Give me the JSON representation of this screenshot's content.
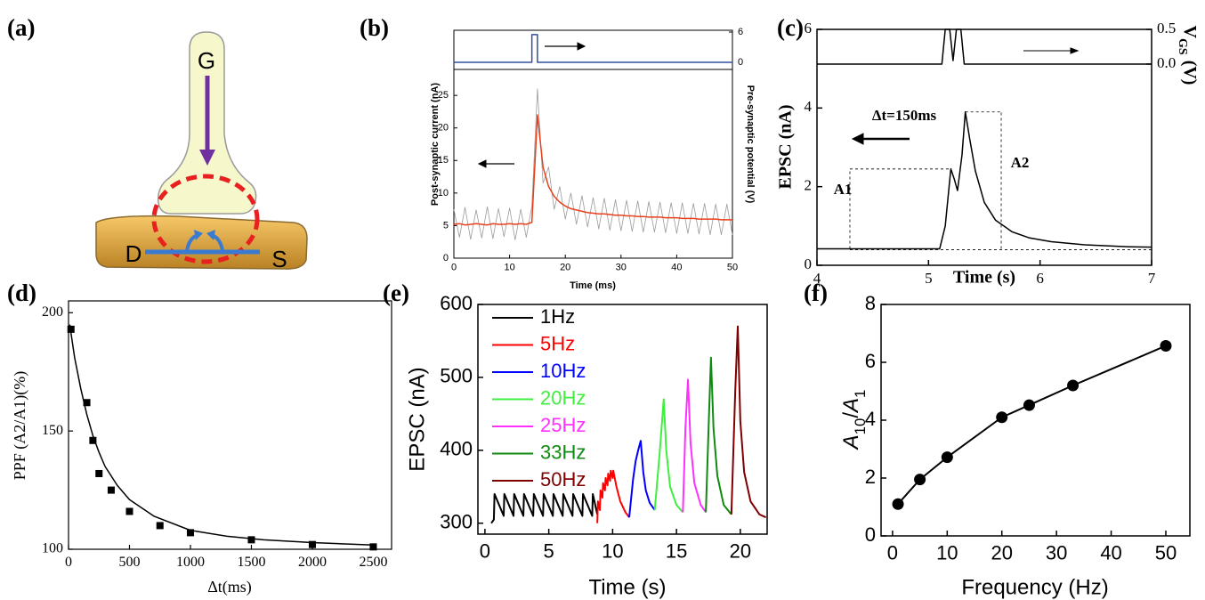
{
  "diagram": {
    "panel": "(a)",
    "nodes": [
      "G",
      "D",
      "S"
    ]
  },
  "chart_data": [
    {
      "panel": "(b)",
      "type": "line",
      "x_label": "Time (ms)",
      "y_label": "Post-synaptic current (nA)",
      "y2_label": "Pre-synaptic potential (V)",
      "xlim": [
        0,
        50
      ],
      "xticks": [
        0,
        10,
        20,
        30,
        40,
        50
      ],
      "ylim": [
        0,
        35
      ],
      "yticks": [
        0,
        5,
        10,
        15,
        20,
        25
      ],
      "y2lim": [
        -38.8,
        6.35
      ],
      "y2ticks": [
        0,
        6
      ],
      "x": [
        0,
        1,
        2,
        3,
        4,
        5,
        6,
        7,
        8,
        9,
        10,
        11,
        12,
        13,
        14,
        15,
        16,
        17,
        18,
        19,
        20,
        21,
        22,
        23,
        24,
        25,
        26,
        27,
        28,
        29,
        30,
        31,
        32,
        33,
        34,
        35,
        36,
        37,
        38,
        39,
        40,
        41,
        42,
        43,
        44,
        45,
        46,
        47,
        48,
        49,
        50
      ],
      "series": [
        {
          "color": "#9a9a9a",
          "style": "line",
          "values": [
            7.5,
            3.2,
            7.8,
            2.9,
            7.4,
            3.1,
            7.9,
            3.0,
            7.6,
            3.3,
            7.7,
            2.8,
            7.5,
            3.2,
            8.0,
            26,
            11.5,
            14,
            7.5,
            11,
            6.0,
            10,
            5.2,
            9.6,
            4.8,
            9.3,
            4.5,
            9.2,
            4.3,
            9.0,
            4.2,
            8.9,
            4.1,
            8.8,
            4.0,
            8.7,
            4.0,
            8.6,
            3.9,
            8.5,
            3.8,
            8.5,
            3.8,
            8.4,
            3.7,
            8.4,
            3.6,
            8.3,
            3.6,
            8.3,
            3.6
          ]
        },
        {
          "color": "#e8401c",
          "style": "line",
          "values": [
            5.2,
            5.3,
            5.1,
            5.2,
            5.3,
            5.2,
            5.1,
            5.3,
            5.2,
            5.2,
            5.3,
            5.2,
            5.3,
            5.2,
            5.5,
            22,
            14,
            11,
            9.5,
            8.6,
            8.0,
            7.6,
            7.4,
            7.2,
            7.0,
            6.9,
            6.8,
            6.8,
            6.7,
            6.6,
            6.6,
            6.5,
            6.5,
            6.4,
            6.4,
            6.3,
            6.3,
            6.3,
            6.2,
            6.2,
            6.2,
            6.1,
            6.1,
            6.1,
            6.0,
            6.0,
            6.0,
            6.0,
            5.9,
            5.9,
            5.9
          ]
        },
        {
          "color": "#3050a0",
          "style": "line",
          "axis": "y2",
          "x": [
            0,
            14,
            14,
            15,
            15,
            50
          ],
          "values": [
            0,
            0,
            5.5,
            5.5,
            0,
            0
          ]
        }
      ]
    },
    {
      "panel": "(c)",
      "type": "line",
      "x_label": "Time (s)",
      "y_label": "EPSC (nA)",
      "y2_label": [
        "V",
        "GS",
        "(V)"
      ],
      "annotations": [
        "Δt=150ms",
        "A1",
        "A2"
      ],
      "xlim": [
        4,
        7
      ],
      "xticks": [
        4,
        5,
        6,
        7
      ],
      "ylim": [
        0,
        6
      ],
      "yticks": [
        0,
        2,
        4,
        6
      ],
      "y2lim": [
        -2.9,
        0.5
      ],
      "y2ticks": [
        {
          "value": 0,
          "label": "0.0"
        },
        {
          "value": 0.5,
          "label": "0.5"
        }
      ],
      "series": [
        {
          "color": "#000000",
          "style": "line",
          "x": [
            4,
            5.1,
            5.15,
            5.2,
            5.23,
            5.26,
            5.3,
            5.33,
            5.37,
            5.42,
            5.5,
            5.6,
            5.75,
            5.9,
            6.1,
            6.4,
            6.8,
            7
          ],
          "values": [
            0.42,
            0.42,
            1.0,
            2.45,
            2.2,
            1.9,
            2.8,
            3.9,
            3.2,
            2.4,
            1.6,
            1.15,
            0.85,
            0.7,
            0.6,
            0.52,
            0.47,
            0.46
          ]
        },
        {
          "color": "#000000",
          "style": "line",
          "axis": "y2",
          "x": [
            4,
            5.12,
            5.15,
            5.19,
            5.22,
            5.25,
            5.29,
            5.32,
            7
          ],
          "values": [
            0,
            0,
            0.5,
            0.5,
            0.05,
            0.5,
            0.5,
            0,
            0
          ]
        }
      ]
    },
    {
      "panel": "(d)",
      "type": "scatter",
      "x_label": "Δt(ms)",
      "y_label": "PPF (A2/A1)(%)",
      "xlim": [
        0,
        2650
      ],
      "xticks": [
        0,
        500,
        1000,
        1500,
        2000,
        2500
      ],
      "ylim": [
        100,
        205
      ],
      "yticks": [
        100,
        150,
        200
      ],
      "series": [
        {
          "color": "#000000",
          "style": "markers",
          "marker": "square",
          "x": [
            20,
            150,
            200,
            250,
            350,
            500,
            750,
            1000,
            1500,
            2000,
            2500
          ],
          "values": [
            193,
            162,
            146,
            132,
            125,
            116,
            110,
            107,
            104,
            102,
            101
          ]
        },
        {
          "color": "#000000",
          "style": "line",
          "x": [
            10,
            50,
            100,
            150,
            200,
            250,
            300,
            400,
            500,
            700,
            1000,
            1300,
            1600,
            2000,
            2500
          ],
          "values": [
            195,
            181,
            168,
            157,
            148,
            141,
            135,
            127,
            121,
            114,
            108,
            105.5,
            104,
            102.8,
            101.8
          ]
        }
      ]
    },
    {
      "panel": "(e)",
      "type": "line",
      "legend": "upper left",
      "x_label": "Time (s)",
      "y_label": "EPSC (nA)",
      "xlim": [
        -0.55,
        22.1
      ],
      "xticks": [
        0,
        5,
        10,
        15,
        20
      ],
      "ylim": [
        285,
        600
      ],
      "yticks": [
        300,
        400,
        500,
        600
      ],
      "series": [
        {
          "name": "1Hz",
          "color": "#000000",
          "style": "line",
          "x": [
            0.5,
            0.7,
            0.75,
            1.47,
            1.52,
            2.24,
            2.29,
            3.01,
            3.06,
            3.78,
            3.83,
            4.55,
            4.6,
            5.32,
            5.37,
            6.09,
            6.14,
            6.86,
            6.91,
            7.63,
            7.68,
            8.4,
            8.45,
            8.8
          ],
          "values": [
            300,
            305,
            340,
            310,
            340,
            310,
            340,
            310,
            340,
            310,
            340,
            310,
            340,
            310,
            340,
            310,
            340,
            310,
            340,
            310,
            340,
            310,
            340,
            312
          ]
        },
        {
          "name": "5Hz",
          "color": "#ff0000",
          "style": "line",
          "x": [
            8.8,
            8.85,
            9.0,
            9.05,
            9.2,
            9.25,
            9.4,
            9.45,
            9.6,
            9.65,
            9.8,
            9.85,
            10.0,
            10.05,
            10.3,
            10.6,
            11.0,
            11.3
          ],
          "values": [
            300,
            330,
            318,
            345,
            335,
            355,
            345,
            362,
            352,
            368,
            358,
            372,
            362,
            372,
            350,
            330,
            315,
            308
          ]
        },
        {
          "name": "10Hz",
          "color": "#0000ff",
          "style": "line",
          "x": [
            11.3,
            11.6,
            11.8,
            12.0,
            12.2,
            12.4,
            12.6,
            12.9,
            13.3
          ],
          "values": [
            308,
            360,
            385,
            400,
            413,
            370,
            345,
            328,
            318
          ]
        },
        {
          "name": "20Hz",
          "color": "#40ee40",
          "style": "line",
          "x": [
            13.3,
            13.7,
            14.0,
            14.2,
            14.5,
            15.0,
            15.5
          ],
          "values": [
            318,
            400,
            470,
            400,
            350,
            325,
            315
          ]
        },
        {
          "name": "25Hz",
          "color": "#ff30ff",
          "style": "line",
          "x": [
            15.5,
            15.7,
            15.9,
            16.1,
            16.4,
            16.9,
            17.3
          ],
          "values": [
            315,
            430,
            497,
            410,
            355,
            325,
            315
          ]
        },
        {
          "name": "33Hz",
          "color": "#108a10",
          "style": "line",
          "x": [
            17.3,
            17.55,
            17.7,
            17.9,
            18.2,
            18.7,
            19.3
          ],
          "values": [
            315,
            450,
            527,
            430,
            365,
            325,
            312
          ]
        },
        {
          "name": "50Hz",
          "color": "#800000",
          "style": "line",
          "x": [
            19.3,
            19.6,
            19.8,
            20.0,
            20.3,
            20.8,
            21.5,
            22
          ],
          "values": [
            312,
            480,
            570,
            440,
            370,
            330,
            312,
            308
          ]
        }
      ]
    },
    {
      "panel": "(f)",
      "type": "line",
      "x_label": "Frequency (Hz)",
      "y_label": [
        "A",
        "10",
        "/",
        "A",
        "1"
      ],
      "xlim": [
        -2.1,
        54.4
      ],
      "xticks": [
        0,
        10,
        20,
        30,
        40,
        50
      ],
      "ylim": [
        0,
        8
      ],
      "yticks": [
        0,
        2,
        4,
        6,
        8
      ],
      "series": [
        {
          "color": "#000000",
          "style": "line+markers",
          "marker": "circle",
          "x": [
            1,
            5,
            10,
            20,
            25,
            33,
            50
          ],
          "values": [
            1.1,
            1.95,
            2.72,
            4.1,
            4.52,
            5.2,
            6.57
          ]
        }
      ]
    }
  ]
}
